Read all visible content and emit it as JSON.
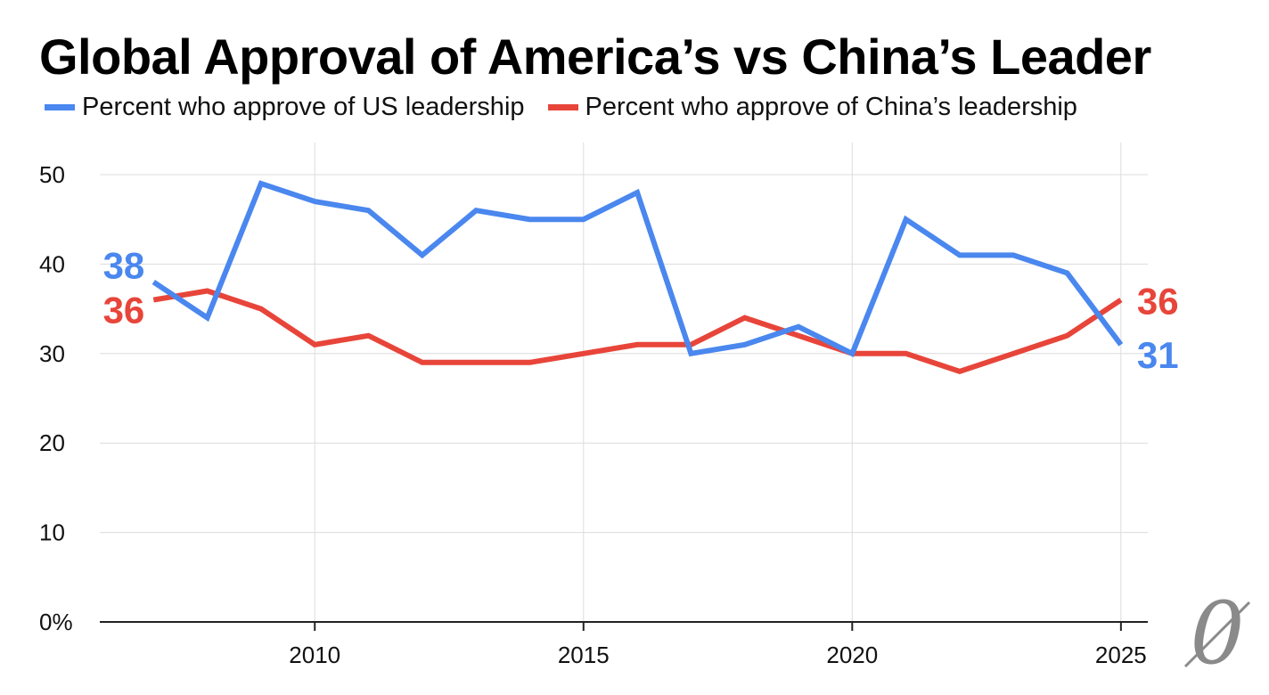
{
  "chart_data": {
    "type": "line",
    "title": "Global Approval of America’s vs China’s Leader",
    "xlabel": "",
    "ylabel": "",
    "xlim": [
      2006,
      2025.5
    ],
    "ylim": [
      0,
      50
    ],
    "x_ticks": [
      2010,
      2015,
      2020,
      2025
    ],
    "y_ticks": [
      0,
      10,
      20,
      30,
      40,
      50
    ],
    "y_tick_labels": [
      "0%",
      "10",
      "20",
      "30",
      "40",
      "50"
    ],
    "grid": true,
    "legend_position": "top-left",
    "x": [
      2007,
      2008,
      2009,
      2010,
      2011,
      2012,
      2013,
      2014,
      2015,
      2016,
      2017,
      2018,
      2019,
      2020,
      2021,
      2022,
      2023,
      2024,
      2025
    ],
    "series": [
      {
        "name": "Percent who approve of US leadership",
        "color": "#4a87ee",
        "values": [
          38,
          34,
          49,
          47,
          46,
          41,
          46,
          45,
          45,
          48,
          30,
          31,
          33,
          30,
          45,
          41,
          41,
          39,
          31
        ],
        "start_label": "38",
        "end_label": "31"
      },
      {
        "name": "Percent who approve of China’s leadership",
        "color": "#e8453a",
        "values": [
          36,
          37,
          35,
          31,
          32,
          29,
          29,
          29,
          30,
          31,
          31,
          34,
          32,
          30,
          30,
          28,
          30,
          32,
          36
        ],
        "start_label": "36",
        "end_label": "36"
      }
    ]
  },
  "logo": {
    "glyph": "0",
    "name": "publisher-logo"
  }
}
